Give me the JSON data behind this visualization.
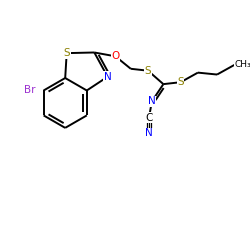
{
  "bg_color": "#ffffff",
  "atom_colors": {
    "Br": "#9b30d0",
    "S": "#8b8000",
    "O": "#ff0000",
    "N": "#0000ff",
    "C": "#000000",
    "default": "#000000"
  },
  "bond_color": "#000000",
  "bond_width": 1.4,
  "figsize": [
    2.5,
    2.5
  ],
  "dpi": 100
}
